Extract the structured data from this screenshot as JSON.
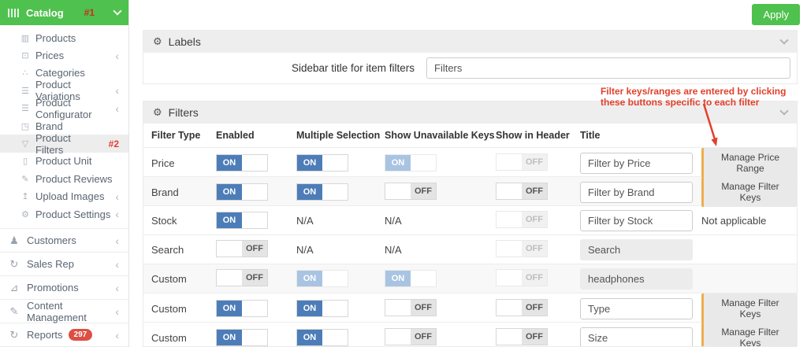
{
  "colors": {
    "accent_green": "#4fc14e",
    "toggle_blue": "#4d7db8",
    "toggle_blue_disabled": "#a9c4e2",
    "manage_orange": "#f0ad4e",
    "annotation_red": "#e2402c",
    "badge_red": "#dd4f43"
  },
  "toggle_labels": {
    "on": "ON",
    "off": "OFF",
    "na": "N/A"
  },
  "topbar": {
    "apply_label": "Apply"
  },
  "sidebar": {
    "header": {
      "label": "Catalog",
      "marker": "#1",
      "icon": "barcode-icon"
    },
    "top_items": [
      {
        "label": "Products",
        "icon": "barcode-icon"
      },
      {
        "label": "Prices",
        "icon": "money-icon",
        "chevron": true
      },
      {
        "label": "Categories",
        "icon": "sitemap-icon"
      },
      {
        "label": "Product Variations",
        "icon": "rows-icon",
        "chevron": true
      },
      {
        "label": "Product Configurator",
        "icon": "rows-icon",
        "chevron": true
      },
      {
        "label": "Brand",
        "icon": "gift-icon"
      },
      {
        "label": "Product Filters",
        "icon": "funnel-icon",
        "active": true,
        "marker": "#2"
      },
      {
        "label": "Product Unit",
        "icon": "page-icon"
      },
      {
        "label": "Product Reviews",
        "icon": "pencil-square-icon"
      },
      {
        "label": "Upload Images",
        "icon": "upload-icon",
        "chevron": true
      },
      {
        "label": "Product Settings",
        "icon": "gear-icon",
        "chevron": true
      }
    ],
    "bottom_items": [
      {
        "label": "Customers",
        "icon": "user-icon",
        "chevron": true
      },
      {
        "label": "Sales Rep",
        "icon": "sync-icon",
        "chevron": true
      },
      {
        "label": "Promotions",
        "icon": "bar-chart-icon",
        "chevron": true
      },
      {
        "label": "Content Management",
        "icon": "edit-icon",
        "chevron": true
      },
      {
        "label": "Reports",
        "icon": "sync-icon",
        "chevron": true,
        "badge": "297"
      }
    ]
  },
  "labels_panel": {
    "title": "Labels",
    "icon": "gears-icon",
    "field_label": "Sidebar title for item filters",
    "field_value": "Filters"
  },
  "filters_panel": {
    "title": "Filters",
    "icon": "gears-icon",
    "note": "Filter keys/ranges are entered by clicking these buttons specific to each filter",
    "columns": [
      "Filter Type",
      "Enabled",
      "Multiple Selection",
      "Show Unavailable Keys",
      "Show in Header",
      "Title",
      ""
    ],
    "rows": [
      {
        "type": "Price",
        "enabled": "on",
        "multiple": "on",
        "show_unavailable": "on-disabled",
        "show_in_header": "off-disabled",
        "title": "Filter by Price",
        "title_disabled": false,
        "action": {
          "kind": "button",
          "label": "Manage Price Range"
        },
        "shaded": false
      },
      {
        "type": "Brand",
        "enabled": "on",
        "multiple": "on",
        "show_unavailable": "off",
        "show_in_header": "off",
        "title": "Filter by Brand",
        "title_disabled": false,
        "action": {
          "kind": "button",
          "label": "Manage Filter Keys"
        },
        "shaded": true
      },
      {
        "type": "Stock",
        "enabled": "on",
        "multiple": "na",
        "show_unavailable": "na",
        "show_in_header": "off-disabled",
        "title": "Filter by Stock",
        "title_disabled": false,
        "action": {
          "kind": "text",
          "label": "Not applicable"
        },
        "shaded": false
      },
      {
        "type": "Search",
        "enabled": "off",
        "multiple": "na",
        "show_unavailable": "na",
        "show_in_header": "off-disabled",
        "title": "Search",
        "title_disabled": true,
        "action": {
          "kind": "none",
          "label": ""
        },
        "shaded": false
      },
      {
        "type": "Custom",
        "enabled": "off",
        "multiple": "on-disabled",
        "show_unavailable": "on-disabled",
        "show_in_header": "off-disabled",
        "title": "headphones",
        "title_disabled": true,
        "action": {
          "kind": "none",
          "label": ""
        },
        "shaded": true
      },
      {
        "type": "Custom",
        "enabled": "on",
        "multiple": "on",
        "show_unavailable": "off",
        "show_in_header": "off",
        "title": "Type",
        "title_disabled": false,
        "action": {
          "kind": "button",
          "label": "Manage Filter Keys"
        },
        "shaded": false
      },
      {
        "type": "Custom",
        "enabled": "on",
        "multiple": "on",
        "show_unavailable": "off",
        "show_in_header": "off",
        "title": "Size",
        "title_disabled": false,
        "action": {
          "kind": "button",
          "label": "Manage Filter Keys"
        },
        "shaded": false
      }
    ]
  }
}
